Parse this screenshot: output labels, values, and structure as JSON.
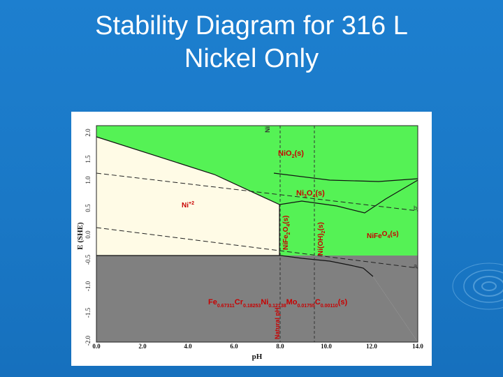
{
  "slide": {
    "title_line1": "Stability Diagram for 316 L",
    "title_line2": "Nickel Only"
  },
  "diagram": {
    "x_label": "pH",
    "y_label": "E (SHE)",
    "x_ticks": [
      "0.0",
      "2.0",
      "4.0",
      "6.0",
      "8.0",
      "10.0",
      "12.0",
      "14.0"
    ],
    "y_ticks": [
      "2.0",
      "1.5",
      "1.0",
      "0.5",
      "0.0",
      "-0.5",
      "-1.0",
      "-1.5",
      "-2.0"
    ],
    "regions": {
      "ni2": "Ni",
      "ni2_charge": "+2",
      "nio2": "NiO",
      "nio2_sub": "2",
      "nio2_tail": "(s)",
      "ni3o4": "Ni",
      "ni3o4_sub1": "3",
      "ni3o4_mid": "O",
      "ni3o4_sub2": "4",
      "ni3o4_tail": "(s)",
      "nife2o4_a": "NiFe",
      "nife2o4_sub1": "2",
      "nife2o4_b": "O",
      "nife2o4_sub2": "4",
      "nife2o4_c": "(s)",
      "nioh2_a": "Ni(OH)",
      "nioh2_sub": "2",
      "nioh2_b": "(s)",
      "right_overlap_a": "NiFe",
      "right_overlap_b": "O",
      "right_overlap_sub": "4",
      "right_overlap_tail": "(s)",
      "top_ni": "Ni",
      "alloy_fe": "Fe",
      "alloy_fe_sub": "0.67311",
      "alloy_cr": "Cr",
      "alloy_cr_sub": "0.18253",
      "alloy_ni": "Ni",
      "alloy_ni_sub": "0.12138",
      "alloy_mo": "Mo",
      "alloy_mo_sub": "0.01755",
      "alloy_c": "C",
      "alloy_c_sub": "0.00110",
      "alloy_tail": "(s)",
      "natural_ph": "Natural pH",
      "line_b": "b",
      "line_a": "a"
    },
    "colors": {
      "green": "#55f255",
      "cream": "#fffbe6",
      "gray": "#808080",
      "label_red": "#c80000"
    }
  }
}
